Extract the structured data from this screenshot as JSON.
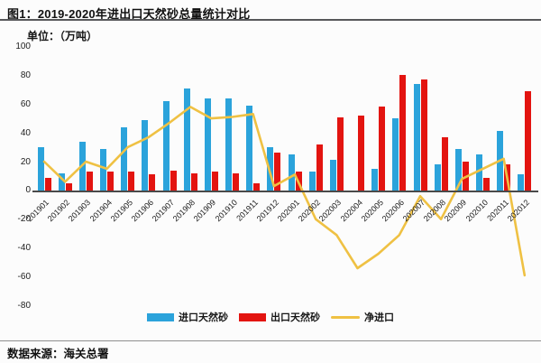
{
  "header": {
    "title": "图1：2019-2020年进出口天然砂总量统计对比"
  },
  "unit_label": "单位：（万吨）",
  "legend": {
    "import": "进口天然砂",
    "export": "出口天然砂",
    "net": "净进口"
  },
  "footer": {
    "source": "数据来源：海关总署"
  },
  "colors": {
    "import_bar": "#2ba3db",
    "export_bar": "#e31410",
    "net_line": "#efc143",
    "axis_line": "#4a4a4a"
  },
  "chart_data": {
    "type": "bar",
    "subtype": "grouped bars with overlaid line",
    "title": "图1：2019-2020年进出口天然砂总量统计对比",
    "xlabel": "",
    "ylabel": "万吨",
    "ylim": [
      -80,
      100
    ],
    "yticks": [
      100,
      80,
      60,
      40,
      20,
      0,
      -20,
      -40,
      -60,
      -80
    ],
    "grid": false,
    "legend_position": "bottom",
    "categories": [
      "201901",
      "201902",
      "201903",
      "201904",
      "201905",
      "201906",
      "201907",
      "201908",
      "201909",
      "201910",
      "201911",
      "201912",
      "202001",
      "202002",
      "202003",
      "202004",
      "202005",
      "202006",
      "202007",
      "202008",
      "202009",
      "202010",
      "202011",
      "202012"
    ],
    "series": [
      {
        "name": "进口天然砂",
        "type": "bar",
        "color": "#2ba3db",
        "values": [
          31,
          13,
          35,
          30,
          45,
          50,
          63,
          72,
          65,
          65,
          60,
          31,
          26,
          14,
          22,
          0,
          16,
          51,
          75,
          19,
          30,
          26,
          42,
          12
        ]
      },
      {
        "name": "出口天然砂",
        "type": "bar",
        "color": "#e31410",
        "values": [
          10,
          6,
          14,
          14,
          14,
          12,
          15,
          13,
          14,
          13,
          6,
          27,
          14,
          33,
          52,
          53,
          59,
          81,
          78,
          38,
          21,
          10,
          19,
          70
        ]
      },
      {
        "name": "净进口",
        "type": "line",
        "color": "#efc143",
        "values": [
          21,
          7,
          21,
          16,
          31,
          38,
          48,
          59,
          51,
          52,
          54,
          4,
          12,
          -19,
          -30,
          -53,
          -43,
          -30,
          -3,
          -19,
          9,
          16,
          23,
          -58
        ]
      }
    ]
  }
}
